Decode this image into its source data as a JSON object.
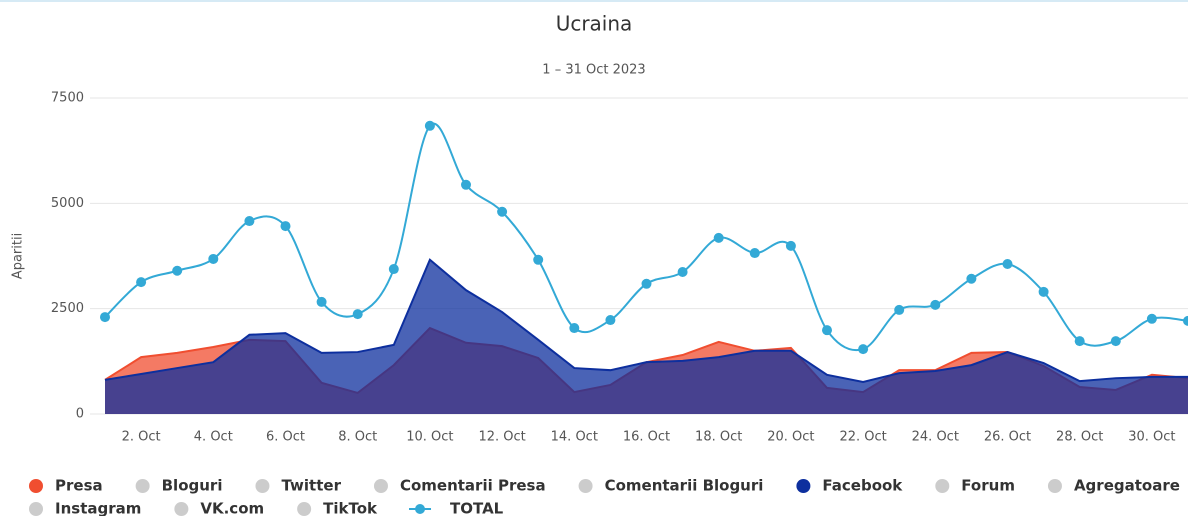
{
  "chart_data": {
    "type": "area",
    "title": "Ucraina",
    "subtitle": "1 – 31 Oct 2023",
    "y_axis_label": "Aparitii",
    "categories": [
      null,
      "2. Oct",
      null,
      "4. Oct",
      null,
      "6. Oct",
      null,
      "8. Oct",
      null,
      "10. Oct",
      null,
      "12. Oct",
      null,
      "14. Oct",
      null,
      "16. Oct",
      null,
      "18. Oct",
      null,
      "20. Oct",
      null,
      "22. Oct",
      null,
      "24. Oct",
      null,
      "26. Oct",
      null,
      "28. Oct",
      null,
      "30. Oct",
      null
    ],
    "ylim": [
      0,
      7500
    ],
    "yticks": [
      0,
      2500,
      5000,
      7500
    ],
    "grid": true,
    "series": [
      {
        "name": "Presa",
        "color": "#f04e30",
        "kind": "area",
        "visible": true,
        "values": [
          810,
          1350,
          1450,
          1590,
          1760,
          1730,
          740,
          500,
          1160,
          2040,
          1690,
          1610,
          1330,
          520,
          690,
          1230,
          1400,
          1710,
          1500,
          1570,
          620,
          520,
          1040,
          1040,
          1450,
          1470,
          1140,
          640,
          570,
          930,
          850
        ]
      },
      {
        "name": "Bloguri",
        "color": "#cccccc",
        "visible": false
      },
      {
        "name": "Twitter",
        "color": "#cccccc",
        "visible": false
      },
      {
        "name": "Comentarii Presa",
        "color": "#cccccc",
        "visible": false
      },
      {
        "name": "Comentarii Bloguri",
        "color": "#cccccc",
        "visible": false
      },
      {
        "name": "Facebook",
        "color": "#0d2f9e",
        "kind": "area",
        "visible": true,
        "values": [
          810,
          950,
          1090,
          1230,
          1880,
          1920,
          1450,
          1470,
          1640,
          3660,
          2940,
          2420,
          1760,
          1090,
          1040,
          1230,
          1260,
          1350,
          1500,
          1500,
          930,
          760,
          970,
          1020,
          1160,
          1470,
          1210,
          780,
          850,
          880,
          880
        ]
      },
      {
        "name": "Forum",
        "color": "#cccccc",
        "visible": false
      },
      {
        "name": "Agregatoare",
        "color": "#cccccc",
        "visible": false
      },
      {
        "name": "Instagram",
        "color": "#cccccc",
        "visible": false
      },
      {
        "name": "VK.com",
        "color": "#cccccc",
        "visible": false
      },
      {
        "name": "TikTok",
        "color": "#cccccc",
        "visible": false
      },
      {
        "name": "TOTAL",
        "color": "#33a9d6",
        "kind": "spline",
        "visible": true,
        "values": [
          2300,
          3130,
          3400,
          3680,
          4580,
          4460,
          2660,
          2370,
          3440,
          6840,
          5440,
          4800,
          3660,
          2040,
          2230,
          3090,
          3370,
          4180,
          3820,
          3990,
          1990,
          1540,
          2470,
          2590,
          3210,
          3560,
          2900,
          1730,
          1730,
          2260,
          2210
        ]
      }
    ]
  }
}
